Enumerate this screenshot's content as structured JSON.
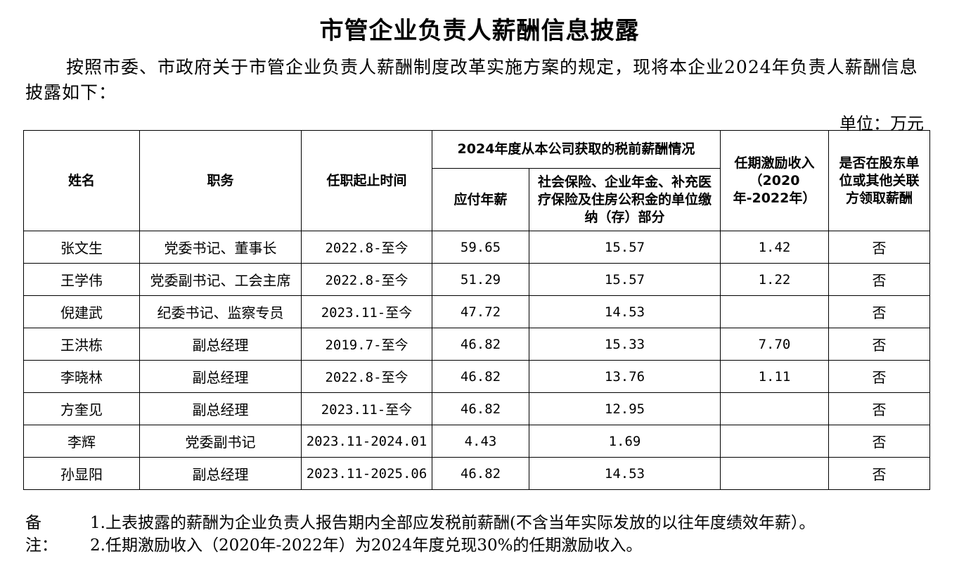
{
  "title": "市管企业负责人薪酬信息披露",
  "intro": "按照市委、市政府关于市管企业负责人薪酬制度改革实施方案的规定，现将本企业2024年负责人薪酬信息披露如下：",
  "unit": "单位：万元",
  "table": {
    "headers": {
      "name": "姓名",
      "position": "职务",
      "term": "任职起止时间",
      "group": "2024年度从本公司获取的税前薪酬情况",
      "salary": "应付年薪",
      "insurance": "社会保险、企业年金、补充医疗保险及住房公积金的单位缴纳（存）部分",
      "incentive": "任期激励收入（2020年-2022年）",
      "other": "是否在股东单位或其他关联方领取薪酬"
    },
    "rows": [
      {
        "name": "张文生",
        "position": "党委书记、董事长",
        "term": "2022.8-至今",
        "salary": "59.65",
        "insurance": "15.57",
        "incentive": "1.42",
        "other": "否"
      },
      {
        "name": "王学伟",
        "position": "党委副书记、工会主席",
        "term": "2022.8-至今",
        "salary": "51.29",
        "insurance": "15.57",
        "incentive": "1.22",
        "other": "否"
      },
      {
        "name": "倪建武",
        "position": "纪委书记、监察专员",
        "term": "2023.11-至今",
        "salary": "47.72",
        "insurance": "14.53",
        "incentive": "",
        "other": "否"
      },
      {
        "name": "王洪栋",
        "position": "副总经理",
        "term": "2019.7-至今",
        "salary": "46.82",
        "insurance": "15.33",
        "incentive": "7.70",
        "other": "否"
      },
      {
        "name": "李晓林",
        "position": "副总经理",
        "term": "2022.8-至今",
        "salary": "46.82",
        "insurance": "13.76",
        "incentive": "1.11",
        "other": "否"
      },
      {
        "name": "方奎见",
        "position": "副总经理",
        "term": "2023.11-至今",
        "salary": "46.82",
        "insurance": "12.95",
        "incentive": "",
        "other": "否"
      },
      {
        "name": "李辉",
        "position": "党委副书记",
        "term": "2023.11-2024.01",
        "salary": "4.43",
        "insurance": "1.69",
        "incentive": "",
        "other": "否"
      },
      {
        "name": "孙显阳",
        "position": "副总经理",
        "term": "2023.11-2025.06",
        "salary": "46.82",
        "insurance": "14.53",
        "incentive": "",
        "other": "否"
      }
    ]
  },
  "notes": {
    "label": "备注：",
    "lines": [
      "1.上表披露的薪酬为企业负责人报告期内全部应发税前薪酬(不含当年实际发放的以往年度绩效年薪）。",
      "2.任期激励收入（2020年-2022年）为2024年度兑现30%的任期激励收入。"
    ]
  }
}
